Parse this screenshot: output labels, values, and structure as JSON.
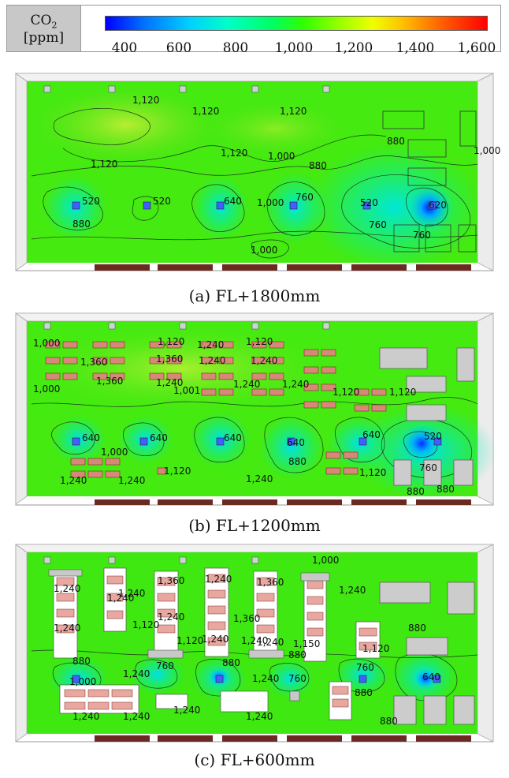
{
  "legend": {
    "unit_top": "CO",
    "unit_sub": "2",
    "unit_bottom": "[ppm]",
    "ticks": [
      "400",
      "600",
      "800",
      "1,000",
      "1,200",
      "1,400",
      "1,600"
    ],
    "colors": {
      "low": "#0000ff",
      "mid": "#30ff00",
      "high": "#ff0000"
    }
  },
  "panels": [
    {
      "caption": "(a) FL+1800mm",
      "labels": [
        "1,120",
        "1,120",
        "1,120",
        "1,120",
        "1,000",
        "880",
        "1,000",
        "1,120",
        "520",
        "520",
        "640",
        "1,000",
        "760",
        "520",
        "620",
        "880",
        "880",
        "760",
        "1,000",
        "760"
      ]
    },
    {
      "caption": "(b) FL+1200mm",
      "labels": [
        "1,000",
        "1,120",
        "1,240",
        "1,120",
        "1,360",
        "1,360",
        "1,240",
        "1,240",
        "1,000",
        "1,360",
        "1,240",
        "1,001",
        "1,240",
        "1,240",
        "1,120",
        "1,120",
        "640",
        "640",
        "640",
        "640",
        "640",
        "520",
        "1,000",
        "1,120",
        "880",
        "760",
        "1,240",
        "1,240",
        "1,240",
        "1,120",
        "880",
        "880"
      ]
    },
    {
      "caption": "(c) FL+600mm",
      "labels": [
        "1,000",
        "1,240",
        "1,360",
        "1,240",
        "1,360",
        "1,240",
        "1,240",
        "1,240",
        "1,240",
        "1,360",
        "1,240",
        "1,240",
        "1,120",
        "1,240",
        "1,120",
        "1,150",
        "1,240",
        "1,120",
        "880",
        "880",
        "880",
        "880",
        "760",
        "760",
        "760",
        "640",
        "1,000",
        "1,240",
        "1,240",
        "1,240",
        "1,240",
        "1,240",
        "1,240",
        "880",
        "880"
      ]
    }
  ]
}
